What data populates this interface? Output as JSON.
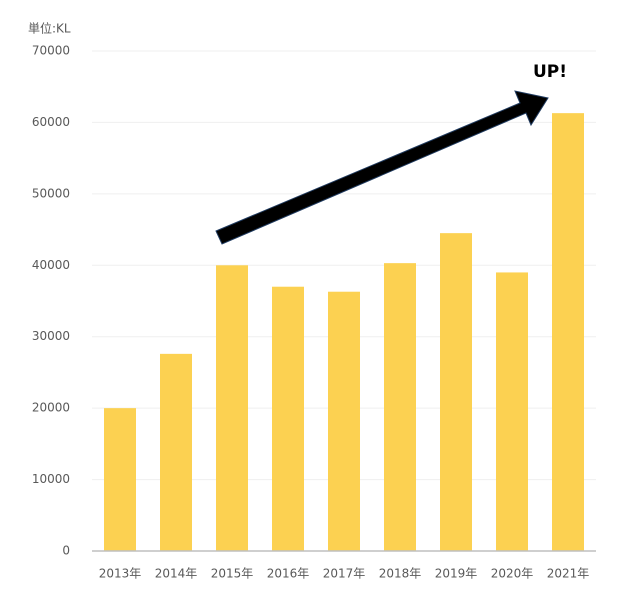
{
  "chart_data": {
    "type": "bar",
    "unit_label": "単位:KL",
    "annotation": "UP!",
    "categories": [
      "2013年",
      "2014年",
      "2015年",
      "2016年",
      "2017年",
      "2018年",
      "2019年",
      "2020年",
      "2021年"
    ],
    "values": [
      20000,
      27600,
      40000,
      37000,
      36300,
      40300,
      44500,
      39000,
      61300
    ],
    "color": "#fcd151",
    "ylim": [
      0,
      70000
    ],
    "yticks": [
      0,
      10000,
      20000,
      30000,
      40000,
      50000,
      60000,
      70000
    ],
    "grid": true
  }
}
